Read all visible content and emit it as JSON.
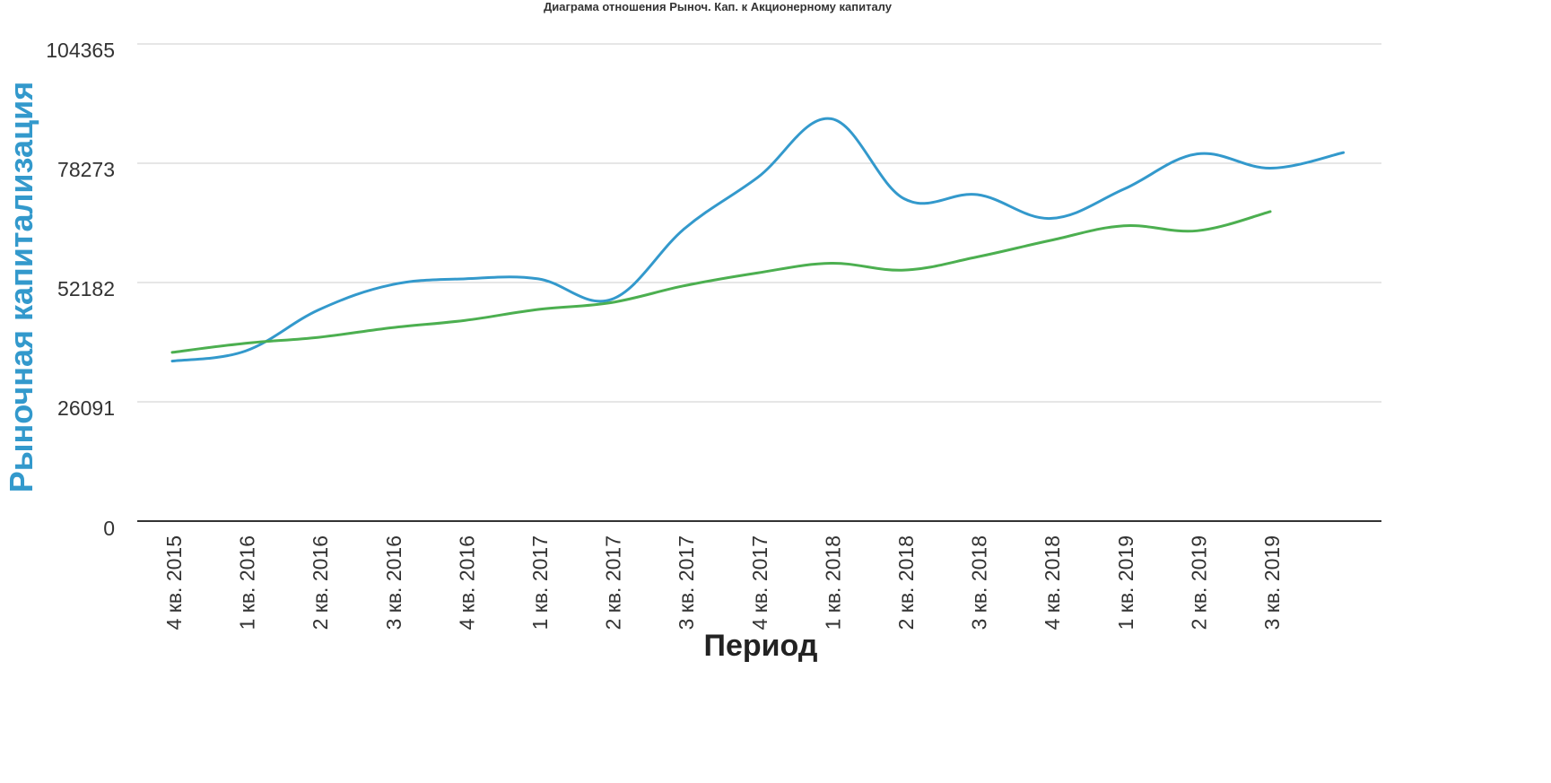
{
  "chart_data": {
    "type": "line",
    "title": "Диаграма отношения Рыноч. Кап. к Акционерному капиталу",
    "xlabel": "Период",
    "ylabel": "Рыночная капитализация",
    "yticks": [
      "104365",
      "78273",
      "52182",
      "26091",
      "0"
    ],
    "ylim": [
      0,
      104365
    ],
    "categories": [
      "4 кв. 2015",
      "1 кв. 2016",
      "2 кв. 2016",
      "3 кв. 2016",
      "4 кв. 2016",
      "1 кв. 2017",
      "2 кв. 2017",
      "3 кв. 2017",
      "4 кв. 2017",
      "1 кв. 2018",
      "2 кв. 2018",
      "3 кв. 2018",
      "4 кв. 2018",
      "1 кв. 2019",
      "2 кв. 2019",
      "3 кв. 2019",
      ""
    ],
    "series": [
      {
        "color": "#3399cc",
        "values": [
          35000,
          37200,
          46200,
          51700,
          53000,
          53000,
          48500,
          64000,
          75200,
          88000,
          70500,
          71400,
          66200,
          72600,
          80300,
          77200,
          80600
        ]
      },
      {
        "color": "#4caf50",
        "values": [
          36900,
          38900,
          40200,
          42300,
          43900,
          46300,
          47800,
          51500,
          54300,
          56400,
          54900,
          57800,
          61400,
          64600,
          63500,
          67700,
          null
        ]
      }
    ],
    "grid": true,
    "legend": "none",
    "colors": {
      "ylabel": "#3399cc",
      "grid": "#cccccc",
      "axis": "#333333",
      "text": "#333333"
    }
  }
}
